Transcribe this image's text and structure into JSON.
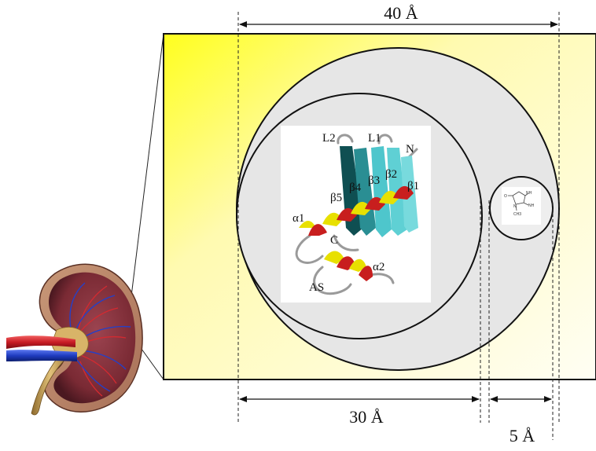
{
  "dimensions": {
    "top": "40 Å",
    "bottom_left": "30 Å",
    "bottom_right": "5 Å"
  },
  "protein_labels": {
    "l2": "L2",
    "l1": "L1",
    "n": "N",
    "b5": "β5",
    "b4": "β4",
    "b3": "β3",
    "b2": "β2",
    "b1": "β1",
    "a1": "α1",
    "c": "C",
    "a2": "α2",
    "as": "AS"
  },
  "molecule_labels": {
    "o": "O",
    "nh1": "NH",
    "nh2": "NH",
    "n": "N",
    "ch3": "CH3"
  },
  "colors": {
    "panel_gradient_start": "#ffff00",
    "panel_gradient_end": "#ffffff",
    "circle_fill": "#e6e6e6",
    "helix_red": "#c81e1e",
    "helix_yellow": "#e8e000",
    "strand_teal": "#4ec6cc",
    "strand_dark": "#0e4e50",
    "kidney_tissue": "#7e2c34",
    "artery": "#d0202a",
    "vein": "#1f3cc0",
    "ureter": "#c89a45"
  }
}
